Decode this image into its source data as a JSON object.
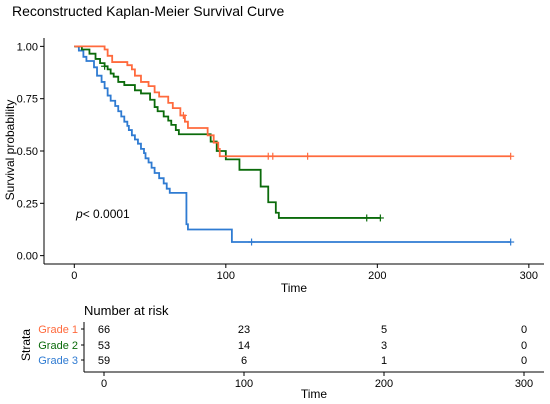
{
  "chart_data": [
    {
      "type": "line",
      "subtype": "kaplan-meier",
      "title": "Reconstructed Kaplan-Meier Survival Curve",
      "xlabel": "Time",
      "ylabel": "Survival probability",
      "xlim": [
        -20,
        310
      ],
      "ylim": [
        -0.04,
        1.04
      ],
      "x_ticks": [
        0,
        100,
        200,
        300
      ],
      "x_tick_labels": [
        "0",
        "100",
        "200",
        "300"
      ],
      "y_ticks": [
        0,
        0.25,
        0.5,
        0.75,
        1
      ],
      "y_tick_labels": [
        "0.00",
        "0.25",
        "0.50",
        "0.75",
        "1.00"
      ],
      "grid": false,
      "annotation": {
        "prefix": "p",
        "text": "< 0.0001"
      },
      "series": [
        {
          "name": "Grade 1",
          "color": "#ff6a3d",
          "steps": [
            [
              0,
              1
            ],
            [
              10,
              1
            ],
            [
              20,
              0.985
            ],
            [
              22,
              0.955
            ],
            [
              25,
              0.925
            ],
            [
              35,
              0.91
            ],
            [
              38,
              0.89
            ],
            [
              40,
              0.86
            ],
            [
              44,
              0.83
            ],
            [
              49,
              0.81
            ],
            [
              53,
              0.78
            ],
            [
              56,
              0.76
            ],
            [
              62,
              0.73
            ],
            [
              65,
              0.705
            ],
            [
              70,
              0.67
            ],
            [
              73,
              0.64
            ],
            [
              75,
              0.61
            ],
            [
              88,
              0.575
            ],
            [
              92,
              0.54
            ],
            [
              95,
              0.51
            ],
            [
              96,
              0.475
            ],
            [
              288,
              0.475
            ]
          ],
          "censor_times": [
            72,
            128,
            131,
            154,
            288
          ]
        },
        {
          "name": "Grade 2",
          "color": "#0b6b0b",
          "steps": [
            [
              0,
              1
            ],
            [
              5,
              0.985
            ],
            [
              10,
              0.965
            ],
            [
              14,
              0.94
            ],
            [
              17,
              0.92
            ],
            [
              20,
              0.905
            ],
            [
              22,
              0.89
            ],
            [
              24,
              0.87
            ],
            [
              26,
              0.855
            ],
            [
              29,
              0.83
            ],
            [
              33,
              0.815
            ],
            [
              40,
              0.79
            ],
            [
              44,
              0.775
            ],
            [
              50,
              0.745
            ],
            [
              53,
              0.71
            ],
            [
              55,
              0.69
            ],
            [
              59,
              0.665
            ],
            [
              62,
              0.645
            ],
            [
              64,
              0.625
            ],
            [
              67,
              0.6
            ],
            [
              69,
              0.58
            ],
            [
              90,
              0.545
            ],
            [
              94,
              0.5
            ],
            [
              100,
              0.46
            ],
            [
              109,
              0.41
            ],
            [
              123,
              0.33
            ],
            [
              128,
              0.255
            ],
            [
              133,
              0.205
            ],
            [
              135,
              0.18
            ],
            [
              202,
              0.18
            ]
          ],
          "censor_times": [
            20,
            193,
            202
          ]
        },
        {
          "name": "Grade 3",
          "color": "#2f7bd2",
          "steps": [
            [
              0,
              1
            ],
            [
              3,
              0.98
            ],
            [
              6,
              0.95
            ],
            [
              8,
              0.93
            ],
            [
              13,
              0.9
            ],
            [
              15,
              0.86
            ],
            [
              18,
              0.83
            ],
            [
              20,
              0.8
            ],
            [
              22,
              0.765
            ],
            [
              24,
              0.74
            ],
            [
              27,
              0.715
            ],
            [
              29,
              0.69
            ],
            [
              31,
              0.665
            ],
            [
              33,
              0.64
            ],
            [
              35,
              0.62
            ],
            [
              36,
              0.6
            ],
            [
              38,
              0.575
            ],
            [
              40,
              0.555
            ],
            [
              42,
              0.535
            ],
            [
              44,
              0.51
            ],
            [
              46,
              0.49
            ],
            [
              47,
              0.465
            ],
            [
              49,
              0.445
            ],
            [
              51,
              0.42
            ],
            [
              53,
              0.395
            ],
            [
              56,
              0.37
            ],
            [
              59,
              0.345
            ],
            [
              61,
              0.32
            ],
            [
              63,
              0.3
            ],
            [
              74,
              0.15
            ],
            [
              75,
              0.125
            ],
            [
              104,
              0.065
            ],
            [
              288,
              0.065
            ]
          ],
          "censor_times": [
            117,
            288
          ]
        }
      ]
    },
    {
      "type": "table",
      "title": "Number at risk",
      "ylabel": "Strata",
      "xlabel": "Time",
      "x_ticks": [
        0,
        100,
        200,
        300
      ],
      "x_tick_labels": [
        "0",
        "100",
        "200",
        "300"
      ],
      "rows": [
        {
          "name": "Grade 1",
          "color": "#ff6a3d",
          "values": [
            "66",
            "23",
            "5",
            "0"
          ]
        },
        {
          "name": "Grade 2",
          "color": "#0b6b0b",
          "values": [
            "53",
            "14",
            "3",
            "0"
          ]
        },
        {
          "name": "Grade 3",
          "color": "#2f7bd2",
          "values": [
            "59",
            "6",
            "1",
            "0"
          ]
        }
      ]
    }
  ]
}
